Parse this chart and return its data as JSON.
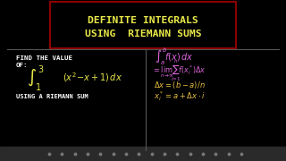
{
  "bg_color": "#000000",
  "title_box_color": "#8B0000",
  "title_text_1": "DEFINITE INTEGRALS",
  "title_text_2": "USING  RIEMANN SUMS",
  "title_color": "#e8e84a",
  "left_white_color": "#ffffff",
  "left_yellow_color": "#e8e84a",
  "right_magenta_color": "#dd66dd",
  "right_yellow_color": "#e8c040",
  "divider_color": "#555555",
  "toolbar_color": "#2a2a2a"
}
